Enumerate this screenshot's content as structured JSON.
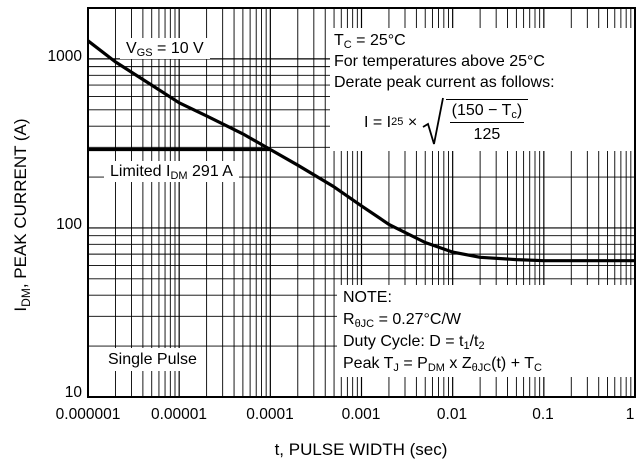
{
  "chart_data": {
    "type": "line",
    "title": "",
    "xlabel": "t, PULSE WIDTH (sec)",
    "ylabel_main": "I",
    "ylabel_sub": "DM",
    "ylabel_rest": ", PEAK CURRENT (A)",
    "x_scale": "log",
    "y_scale": "log",
    "xlim": [
      1e-06,
      1
    ],
    "ylim": [
      10,
      2000
    ],
    "x_ticks": [
      "0.000001",
      "0.00001",
      "0.0001",
      "0.001",
      "0.01",
      "0.1",
      "1"
    ],
    "y_ticks": [
      {
        "value": 1000,
        "label": "1000"
      },
      {
        "value": 100,
        "label": "100"
      },
      {
        "value": 10,
        "label": "10"
      }
    ],
    "grid": true,
    "series": [
      {
        "x": [
          1e-06,
          2e-06,
          5e-06,
          1e-05,
          2e-05,
          5e-05,
          0.0001,
          0.0002,
          0.0005,
          0.001,
          0.002,
          0.005,
          0.01,
          0.02,
          0.05,
          0.1,
          1
        ],
        "values": [
          1280,
          960,
          700,
          550,
          460,
          360,
          291,
          235,
          175,
          135,
          105,
          82,
          72,
          67,
          65,
          64,
          64
        ]
      },
      {
        "x": [
          1e-06,
          0.0001
        ],
        "values": [
          291,
          291
        ]
      }
    ]
  },
  "annotations": {
    "vgs": {
      "main": "V",
      "sub": "GS",
      "rest": " = 10 V"
    },
    "limited": {
      "pre": "Limited I",
      "sub": "DM",
      "rest": " 291 A"
    },
    "tc": {
      "main": "T",
      "sub": "C",
      "rest": " = 25°C"
    },
    "temp_line": "For temperatures above 25°C",
    "derate_line": "Derate peak current as follows:",
    "formula": {
      "lhs": "I = I",
      "lhs_sub": "25",
      "times": " × ",
      "numerator": "(150 − T",
      "numerator_sub": "c",
      "numerator_end": ")",
      "denominator": "125"
    },
    "single_pulse": "Single Pulse",
    "note": {
      "title": "NOTE:",
      "rjc_main": "R",
      "rjc_sub": "θJC",
      "rjc_rest": " = 0.27°C/W",
      "duty_pre": "Duty Cycle: D = t",
      "duty_sub1": "1",
      "duty_mid": "/t",
      "duty_sub2": "2",
      "peak_pre": "Peak T",
      "peak_sub1": "J",
      "peak_mid1": " = P",
      "peak_sub2": "DM",
      "peak_mid2": " x Z",
      "peak_sub3": "θJC",
      "peak_end": "(t) + T",
      "peak_sub4": "C"
    }
  },
  "colors": {
    "line": "#000000",
    "grid": "#000000",
    "background": "#ffffff"
  }
}
